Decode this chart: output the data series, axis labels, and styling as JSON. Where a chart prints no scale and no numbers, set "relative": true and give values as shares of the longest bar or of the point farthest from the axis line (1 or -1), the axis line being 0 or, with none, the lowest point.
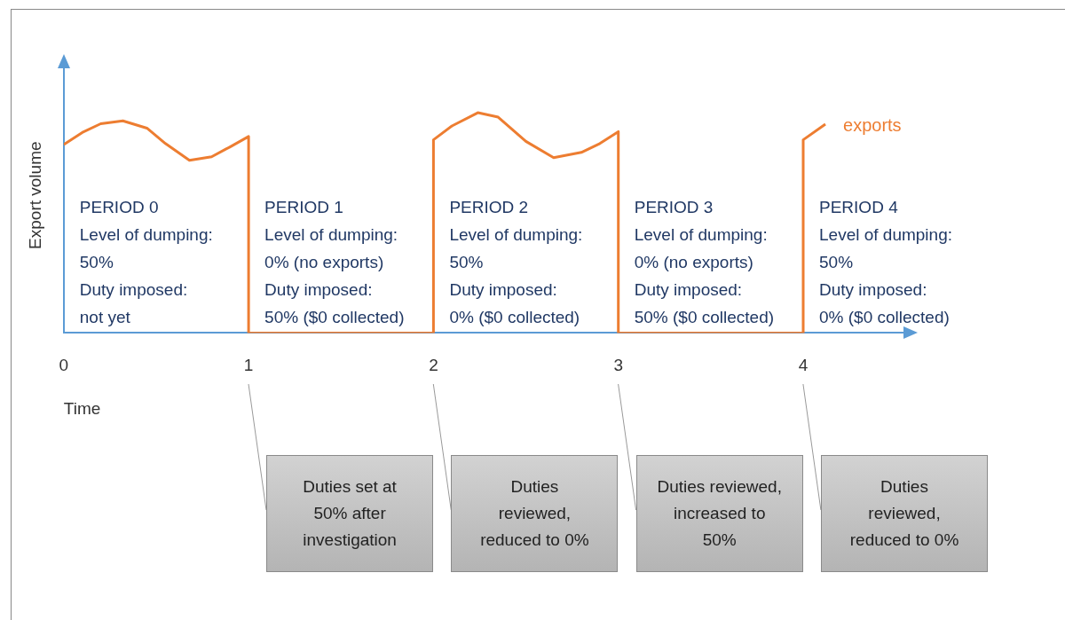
{
  "chart_data": {
    "type": "line",
    "relative": true,
    "xlabel": "Time",
    "ylabel": "Export volume",
    "xlim": [
      0,
      4.6
    ],
    "xticks": [
      0,
      1,
      2,
      3,
      4
    ],
    "series": [
      {
        "name": "exports",
        "color": "#ed7d31",
        "x": [
          0,
          0.1,
          0.2,
          0.32,
          0.45,
          0.55,
          0.68,
          0.8,
          0.9,
          1,
          1,
          2,
          2,
          2.1,
          2.24,
          2.35,
          2.5,
          2.65,
          2.8,
          2.9,
          3,
          3,
          4,
          4,
          4.12
        ],
        "values": [
          0.855,
          0.91,
          0.95,
          0.963,
          0.93,
          0.86,
          0.784,
          0.8,
          0.845,
          0.892,
          0,
          0,
          0.877,
          0.94,
          1,
          0.98,
          0.87,
          0.796,
          0.82,
          0.86,
          0.914,
          0,
          0,
          0.877,
          0.948
        ]
      }
    ],
    "annotations": [
      "PERIOD 0\nLevel of dumping:\n50%\nDuty imposed:\nnot yet",
      "PERIOD 1\nLevel of dumping:\n0% (no exports)\nDuty imposed:\n50% ($0 collected)",
      "PERIOD 2\nLevel of dumping:\n50%\nDuty imposed:\n0% ($0 collected)",
      "PERIOD 3\nLevel of dumping:\n0% (no exports)\nDuty imposed:\n50% ($0 collected)",
      "PERIOD 4\nLevel of dumping:\n50%\nDuty imposed:\n0% ($0 collected)",
      "Duties set at\n50% after\ninvestigation",
      "Duties\nreviewed,\nreduced to 0%",
      "Duties reviewed,\nincreased to\n50%",
      "Duties\nreviewed,\nreduced to 0%"
    ]
  }
}
